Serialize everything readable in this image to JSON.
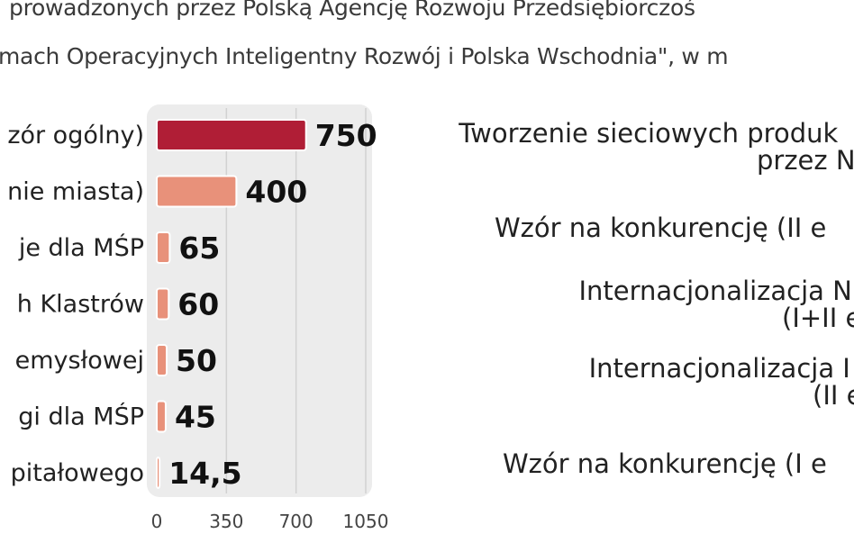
{
  "header": {
    "line1": "prowadzonych przez Polską Agencję Rozwoju Przedsiębiorczoś",
    "line2": "mach Operacyjnych Inteligentny Rozwój i Polska Wschodnia\", w m"
  },
  "chart_data": {
    "type": "bar",
    "orientation": "horizontal",
    "categories": [
      "zór ogólny)",
      "nie miasta)",
      "je dla MŚP",
      "h Klastrów",
      "emysłowej",
      "gi dla MŚP",
      "pitałowego"
    ],
    "values": [
      750,
      400,
      65,
      60,
      50,
      45,
      14.5
    ],
    "value_labels": [
      "750",
      "400",
      "65",
      "60",
      "50",
      "45",
      "14,5"
    ],
    "xlim": [
      0,
      1050
    ],
    "xticks": [
      0,
      350,
      700,
      1050
    ],
    "xtick_labels": [
      "0",
      "350",
      "700",
      "1050"
    ],
    "grid": true,
    "colors": [
      "#b01e36",
      "#e8917a",
      "#e8917a",
      "#e8917a",
      "#e8917a",
      "#e8917a",
      "#e8917a"
    ]
  },
  "right_column": [
    {
      "lines": [
        "Tworzenie sieciowych produk",
        "przez N"
      ]
    },
    {
      "lines": [
        "Wzór na konkurencję (II e"
      ]
    },
    {
      "lines": [
        "Internacjonalizacja N",
        "(I+II e"
      ]
    },
    {
      "lines": [
        "Internacjonalizacja I",
        "(II e"
      ]
    },
    {
      "lines": [
        "Wzór na konkurencję (I e"
      ]
    }
  ]
}
